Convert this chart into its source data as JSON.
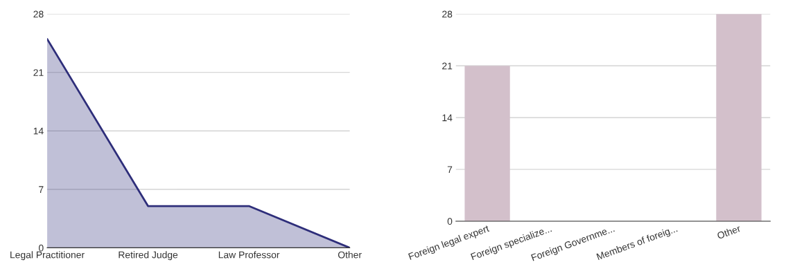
{
  "chart_data": [
    {
      "type": "area",
      "categories": [
        "Legal Practitioner",
        "Retired Judge",
        "Law Professor",
        "Other"
      ],
      "series": [
        {
          "color": "#2e2e7a",
          "values": [
            25,
            5,
            5,
            0
          ]
        }
      ],
      "ylim": [
        0,
        28
      ],
      "yticks": [
        0,
        7,
        14,
        21,
        28
      ],
      "grid": "y"
    },
    {
      "type": "bar",
      "categories": [
        "Foreign legal expert",
        "Foreign specialize...",
        "Foreign Governme...",
        "Members of foreig...",
        "Other"
      ],
      "series": [
        {
          "color": "#d3c0cb",
          "values": [
            21,
            0,
            0,
            0,
            28
          ]
        }
      ],
      "ylim": [
        0,
        28
      ],
      "yticks": [
        0,
        7,
        14,
        21,
        28
      ],
      "grid": "y"
    }
  ]
}
